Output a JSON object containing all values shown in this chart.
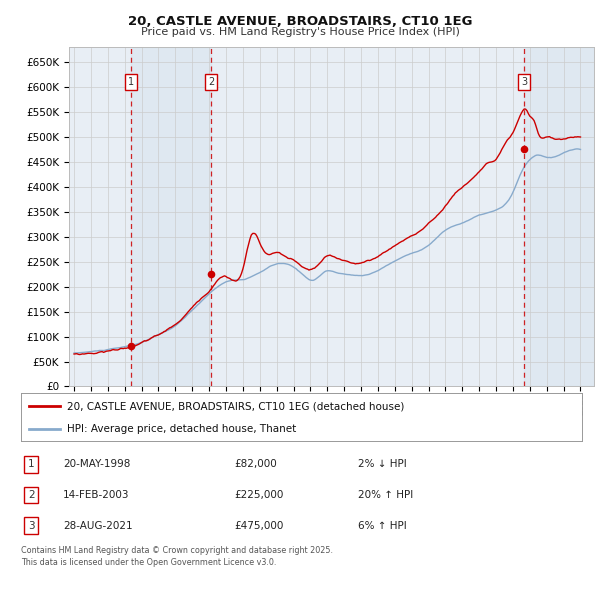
{
  "title": "20, CASTLE AVENUE, BROADSTAIRS, CT10 1EG",
  "subtitle": "Price paid vs. HM Land Registry's House Price Index (HPI)",
  "ylim": [
    0,
    680000
  ],
  "xlim": [
    1994.7,
    2025.8
  ],
  "yticks": [
    0,
    50000,
    100000,
    150000,
    200000,
    250000,
    300000,
    350000,
    400000,
    450000,
    500000,
    550000,
    600000,
    650000
  ],
  "ytick_labels": [
    "£0",
    "£50K",
    "£100K",
    "£150K",
    "£200K",
    "£250K",
    "£300K",
    "£350K",
    "£400K",
    "£450K",
    "£500K",
    "£550K",
    "£600K",
    "£650K"
  ],
  "xticks": [
    1995,
    1996,
    1997,
    1998,
    1999,
    2000,
    2001,
    2002,
    2003,
    2004,
    2005,
    2006,
    2007,
    2008,
    2009,
    2010,
    2011,
    2012,
    2013,
    2014,
    2015,
    2016,
    2017,
    2018,
    2019,
    2020,
    2021,
    2022,
    2023,
    2024,
    2025
  ],
  "line_color_red": "#cc0000",
  "line_color_blue": "#88aacc",
  "grid_color": "#cccccc",
  "bg_color": "#e8eef5",
  "transactions": [
    {
      "id": 1,
      "date": "20-MAY-1998",
      "year": 1998.38,
      "price": 82000,
      "pct": "2%",
      "dir": "↓"
    },
    {
      "id": 2,
      "date": "14-FEB-2003",
      "year": 2003.12,
      "price": 225000,
      "pct": "20%",
      "dir": "↑"
    },
    {
      "id": 3,
      "date": "28-AUG-2021",
      "year": 2021.65,
      "price": 475000,
      "pct": "6%",
      "dir": "↑"
    }
  ],
  "legend_line1": "20, CASTLE AVENUE, BROADSTAIRS, CT10 1EG (detached house)",
  "legend_line2": "HPI: Average price, detached house, Thanet",
  "footer": "Contains HM Land Registry data © Crown copyright and database right 2025.\nThis data is licensed under the Open Government Licence v3.0."
}
